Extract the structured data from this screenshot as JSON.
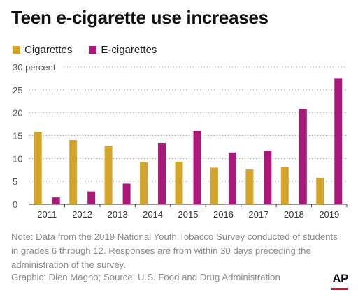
{
  "header": {
    "title": "Teen e-cigarette use increases"
  },
  "chart_data": {
    "type": "bar",
    "title": "Teen e-cigarette use increases",
    "ylabel": "",
    "xlabel": "",
    "ylim": [
      0,
      30
    ],
    "yticks": [
      "30 percent",
      "25",
      "20",
      "15",
      "10",
      "5",
      "0"
    ],
    "categories": [
      "2011",
      "2012",
      "2013",
      "2014",
      "2015",
      "2016",
      "2017",
      "2018",
      "2019"
    ],
    "legend_position": "top-left",
    "grid": "dotted-horizontal",
    "series": [
      {
        "name": "Cigarettes",
        "color": "#d4a32a",
        "values": [
          15.8,
          14.0,
          12.7,
          9.2,
          9.3,
          8.0,
          7.6,
          8.1,
          5.8
        ]
      },
      {
        "name": "E-cigarettes",
        "color": "#a8197a",
        "values": [
          1.5,
          2.8,
          4.5,
          13.4,
          16.0,
          11.3,
          11.7,
          20.8,
          27.5
        ]
      }
    ]
  },
  "note": "Note: Data from the 2019 National Youth Tobacco Survey conducted of students in grades 6 through 12. Responses are from within 30 days preceding the administration of the survey.",
  "credit": "Graphic: Dien Magno; Source: U.S. Food and Drug Administration",
  "logo": "AP"
}
